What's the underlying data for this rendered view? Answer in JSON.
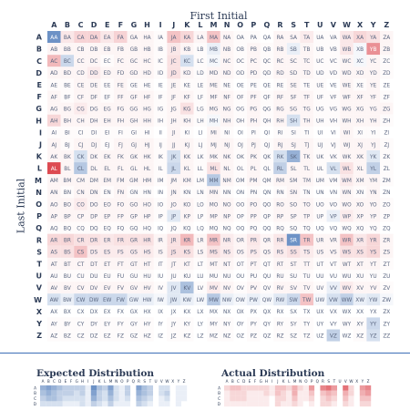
{
  "header": {
    "x_title": "First Initial",
    "y_title": "Last Initial",
    "expected_title": "Expected Distribution",
    "actual_title": "Actual Distribution"
  },
  "colors": {
    "over": "#d9363e",
    "under": "#2f63ad",
    "text": "#2b3a55",
    "divider": "#3d6fb6"
  },
  "chart_data": [
    {
      "type": "heatmap",
      "title": "",
      "xlabel": "First Initial",
      "ylabel": "Last Initial",
      "x_categories": [
        "A",
        "B",
        "C",
        "D",
        "E",
        "F",
        "G",
        "H",
        "I",
        "J",
        "K",
        "L",
        "M",
        "N",
        "O",
        "P",
        "Q",
        "R",
        "S",
        "T",
        "U",
        "V",
        "W",
        "X",
        "Y",
        "Z"
      ],
      "y_categories": [
        "A",
        "B",
        "C",
        "D",
        "E",
        "F",
        "G",
        "H",
        "I",
        "J",
        "K",
        "L",
        "M",
        "N",
        "O",
        "P",
        "Q",
        "R",
        "S",
        "T",
        "U",
        "V",
        "W",
        "X",
        "Y",
        "Z"
      ],
      "cell_labels": "first initial followed by last initial (e.g. AB)",
      "color_scale": "diverging: red = more than expected, blue = fewer than expected",
      "values": [
        [
          -0.7,
          0.12,
          0.22,
          0.22,
          0.12,
          0.22,
          0.05,
          0.05,
          0.02,
          0.3,
          0.2,
          0.05,
          0.3,
          0.05,
          0.02,
          0.02,
          0.0,
          0.05,
          0.05,
          0.1,
          0.02,
          0.02,
          0.12,
          0.2,
          0.15,
          0.05
        ],
        [
          0.05,
          0.05,
          0.05,
          0.05,
          0.05,
          0.05,
          0.05,
          0.05,
          0.02,
          0.12,
          0.05,
          0.02,
          -0.1,
          0.05,
          0.02,
          0.05,
          0.02,
          0.05,
          -0.1,
          0.05,
          0.02,
          0.02,
          0.12,
          -0.05,
          0.55,
          0.05
        ],
        [
          0.35,
          -0.25,
          0.05,
          0.05,
          0.02,
          0.05,
          0.05,
          0.05,
          0.02,
          0.15,
          -0.2,
          0.02,
          -0.05,
          0.05,
          0.02,
          0.05,
          0.02,
          0.05,
          0.05,
          0.05,
          0.02,
          0.02,
          0.05,
          -0.05,
          0.05,
          0.02
        ],
        [
          0.05,
          0.05,
          0.05,
          0.1,
          0.05,
          0.05,
          0.05,
          0.05,
          0.02,
          0.15,
          0.05,
          0.02,
          0.05,
          0.05,
          0.02,
          0.05,
          0.02,
          0.05,
          0.05,
          0.05,
          0.02,
          0.02,
          0.05,
          0.05,
          0.05,
          0.02
        ],
        [
          0.02,
          0.02,
          0.05,
          0.05,
          0.02,
          0.05,
          0.02,
          0.02,
          0.0,
          0.05,
          0.02,
          0.02,
          0.05,
          0.02,
          0.0,
          0.02,
          0.0,
          0.02,
          0.05,
          0.02,
          0.02,
          0.0,
          0.05,
          0.02,
          0.05,
          0.0
        ],
        [
          0.05,
          0.02,
          0.05,
          0.05,
          0.02,
          0.05,
          0.05,
          0.05,
          0.02,
          0.05,
          0.05,
          0.02,
          0.05,
          0.05,
          0.02,
          0.05,
          0.02,
          0.05,
          0.05,
          0.05,
          0.02,
          0.02,
          0.05,
          0.05,
          0.05,
          0.02
        ],
        [
          0.05,
          0.05,
          0.1,
          0.05,
          0.05,
          0.05,
          0.05,
          0.05,
          0.02,
          0.05,
          0.15,
          0.02,
          0.05,
          0.05,
          0.02,
          0.05,
          0.02,
          0.05,
          0.05,
          0.05,
          0.02,
          0.02,
          0.05,
          0.05,
          0.05,
          0.05
        ],
        [
          0.2,
          0.05,
          0.05,
          0.05,
          0.05,
          0.05,
          0.05,
          0.05,
          0.02,
          0.05,
          0.05,
          0.02,
          -0.05,
          0.05,
          0.02,
          0.05,
          0.02,
          0.05,
          -0.2,
          0.05,
          0.02,
          0.02,
          0.05,
          0.05,
          0.05,
          0.02
        ],
        [
          0.02,
          0.02,
          0.02,
          0.02,
          0.02,
          0.02,
          0.02,
          0.02,
          0.0,
          0.05,
          0.02,
          0.0,
          0.05,
          0.02,
          0.0,
          0.02,
          0.0,
          0.02,
          0.02,
          0.02,
          0.0,
          0.0,
          0.05,
          0.02,
          0.02,
          0.0
        ],
        [
          0.05,
          0.02,
          0.05,
          0.05,
          0.02,
          0.05,
          0.05,
          0.05,
          0.02,
          0.05,
          0.05,
          0.02,
          0.05,
          0.05,
          0.02,
          0.05,
          0.02,
          0.05,
          0.05,
          0.05,
          0.02,
          0.02,
          0.05,
          0.05,
          0.05,
          0.02
        ],
        [
          0.05,
          0.05,
          -0.2,
          0.05,
          0.05,
          0.05,
          0.05,
          0.05,
          0.02,
          -0.2,
          0.05,
          0.02,
          0.05,
          0.05,
          0.02,
          0.05,
          0.02,
          -0.2,
          -0.5,
          0.05,
          0.02,
          0.02,
          0.05,
          0.05,
          -0.15,
          0.02
        ],
        [
          0.9,
          0.05,
          -0.35,
          0.05,
          0.05,
          0.05,
          0.05,
          0.05,
          0.02,
          -0.25,
          0.05,
          0.02,
          0.15,
          0.05,
          0.02,
          0.05,
          0.02,
          -0.3,
          0.05,
          0.05,
          0.02,
          -0.2,
          0.15,
          0.05,
          -0.3,
          0.02
        ],
        [
          0.05,
          0.05,
          0.05,
          0.05,
          0.05,
          0.05,
          0.05,
          0.05,
          0.02,
          0.05,
          0.05,
          0.02,
          -0.35,
          0.05,
          0.02,
          0.05,
          0.02,
          0.05,
          0.05,
          0.05,
          0.02,
          0.02,
          0.1,
          0.05,
          0.05,
          0.02
        ],
        [
          0.05,
          0.02,
          0.05,
          0.05,
          0.02,
          0.05,
          0.02,
          0.02,
          0.0,
          0.05,
          0.02,
          0.02,
          0.05,
          0.02,
          0.0,
          0.02,
          0.0,
          0.02,
          0.05,
          0.02,
          0.0,
          0.0,
          0.05,
          0.02,
          0.05,
          0.0
        ],
        [
          0.05,
          0.05,
          0.1,
          0.05,
          0.05,
          0.05,
          0.05,
          0.05,
          0.02,
          0.05,
          0.05,
          0.02,
          0.05,
          0.05,
          0.02,
          0.05,
          0.02,
          0.05,
          0.05,
          0.05,
          0.02,
          0.02,
          0.05,
          0.05,
          0.05,
          0.02
        ],
        [
          0.05,
          0.05,
          0.05,
          0.05,
          0.05,
          0.05,
          0.05,
          0.05,
          0.02,
          -0.15,
          0.05,
          0.02,
          0.05,
          0.05,
          0.02,
          0.05,
          0.02,
          0.05,
          0.05,
          0.05,
          0.02,
          -0.1,
          0.1,
          0.05,
          0.05,
          0.02
        ],
        [
          0.02,
          0.02,
          0.02,
          0.02,
          0.02,
          0.02,
          0.02,
          0.02,
          0.0,
          0.02,
          0.02,
          0.0,
          0.02,
          0.02,
          0.0,
          0.02,
          0.0,
          0.02,
          0.02,
          0.02,
          0.0,
          0.0,
          0.02,
          0.02,
          0.02,
          0.0
        ],
        [
          0.2,
          0.2,
          0.15,
          0.15,
          0.12,
          0.15,
          0.15,
          0.15,
          0.05,
          0.15,
          0.35,
          0.05,
          0.3,
          0.1,
          0.05,
          0.12,
          0.05,
          0.12,
          -0.7,
          0.3,
          0.05,
          0.05,
          0.3,
          0.12,
          0.2,
          0.05
        ],
        [
          0.15,
          0.15,
          0.3,
          0.1,
          0.1,
          0.1,
          0.1,
          0.1,
          0.05,
          0.15,
          0.15,
          0.05,
          0.15,
          0.1,
          0.05,
          0.1,
          0.05,
          0.1,
          0.15,
          0.1,
          0.05,
          0.05,
          0.15,
          0.15,
          0.2,
          0.05
        ],
        [
          0.05,
          0.05,
          0.05,
          0.05,
          0.05,
          0.05,
          0.05,
          0.05,
          0.02,
          0.05,
          0.05,
          0.02,
          0.05,
          0.05,
          0.02,
          0.05,
          0.02,
          0.05,
          0.05,
          0.05,
          0.02,
          0.02,
          0.05,
          0.05,
          0.05,
          0.02
        ],
        [
          0.02,
          0.02,
          0.02,
          0.02,
          0.02,
          0.02,
          0.02,
          0.02,
          0.0,
          0.02,
          0.02,
          0.0,
          0.02,
          0.02,
          0.0,
          0.02,
          0.0,
          0.02,
          0.02,
          0.02,
          0.0,
          0.0,
          0.02,
          0.02,
          0.02,
          0.0
        ],
        [
          0.05,
          0.05,
          0.05,
          0.05,
          0.05,
          0.05,
          0.05,
          0.05,
          0.02,
          -0.15,
          -0.4,
          0.02,
          0.1,
          0.05,
          0.02,
          0.05,
          0.02,
          0.05,
          0.05,
          0.05,
          0.02,
          -0.1,
          0.1,
          0.05,
          0.05,
          0.02
        ],
        [
          -0.2,
          -0.1,
          -0.25,
          -0.25,
          -0.25,
          -0.25,
          -0.1,
          -0.1,
          -0.05,
          -0.15,
          -0.1,
          -0.05,
          -0.35,
          -0.1,
          -0.05,
          -0.1,
          -0.05,
          -0.15,
          -0.25,
          0.3,
          -0.05,
          -0.2,
          -0.3,
          -0.1,
          -0.15,
          -0.05
        ],
        [
          0.0,
          0.0,
          0.0,
          0.0,
          0.0,
          0.0,
          0.0,
          0.0,
          0.0,
          0.0,
          0.0,
          0.0,
          0.0,
          0.0,
          0.0,
          0.0,
          0.0,
          0.0,
          0.0,
          0.0,
          0.0,
          0.0,
          0.0,
          0.0,
          0.0,
          0.0
        ],
        [
          0.02,
          0.02,
          0.02,
          0.02,
          0.02,
          0.02,
          0.02,
          0.02,
          0.0,
          0.02,
          0.02,
          0.0,
          0.02,
          0.02,
          0.0,
          0.02,
          0.0,
          0.02,
          0.02,
          0.02,
          0.0,
          0.0,
          0.02,
          0.02,
          -0.25,
          0.0
        ],
        [
          0.02,
          0.02,
          0.02,
          0.02,
          0.02,
          0.02,
          0.02,
          0.02,
          0.0,
          0.02,
          0.02,
          0.0,
          0.02,
          0.02,
          0.0,
          0.02,
          0.0,
          0.02,
          0.02,
          0.02,
          0.0,
          -0.3,
          0.0,
          0.02,
          -0.2,
          0.0
        ]
      ]
    },
    {
      "type": "heatmap",
      "title": "Expected Distribution",
      "x_categories": [
        "A",
        "B",
        "C",
        "D",
        "E",
        "F",
        "G",
        "H",
        "I",
        "J",
        "K",
        "L",
        "M",
        "N",
        "O",
        "P",
        "Q",
        "R",
        "S",
        "T",
        "U",
        "V",
        "W",
        "X",
        "Y",
        "Z"
      ],
      "y_categories": [
        "A",
        "B",
        "C",
        "D"
      ],
      "rows_shown": 4,
      "values": [
        [
          0.5,
          0.6,
          0.5,
          0.4,
          0.3,
          0.3,
          0.3,
          0.3,
          0.1,
          0.7,
          0.4,
          0.3,
          0.6,
          0.2,
          0.1,
          0.3,
          0.0,
          0.6,
          0.4,
          0.3,
          0.0,
          0.2,
          0.2,
          0.0,
          0.1,
          0.1
        ],
        [
          0.4,
          0.5,
          0.4,
          0.3,
          0.3,
          0.3,
          0.2,
          0.3,
          0.1,
          0.6,
          0.3,
          0.2,
          0.5,
          0.2,
          0.1,
          0.3,
          0.0,
          0.5,
          0.4,
          0.3,
          0.0,
          0.2,
          0.3,
          0.0,
          0.1,
          0.1
        ],
        [
          0.3,
          0.4,
          0.4,
          0.3,
          0.2,
          0.2,
          0.2,
          0.2,
          0.1,
          0.5,
          0.3,
          0.2,
          0.4,
          0.2,
          0.1,
          0.2,
          0.0,
          0.4,
          0.3,
          0.2,
          0.0,
          0.1,
          0.2,
          0.0,
          0.1,
          0.1
        ],
        [
          0.2,
          0.2,
          0.2,
          0.2,
          0.1,
          0.1,
          0.1,
          0.2,
          0.1,
          0.3,
          0.2,
          0.1,
          0.3,
          0.1,
          0.1,
          0.1,
          0.0,
          0.3,
          0.2,
          0.1,
          0.0,
          0.1,
          0.1,
          0.0,
          0.1,
          0.0
        ]
      ]
    },
    {
      "type": "heatmap",
      "title": "Actual Distribution",
      "x_categories": [
        "A",
        "B",
        "C",
        "D",
        "E",
        "F",
        "G",
        "H",
        "I",
        "J",
        "K",
        "L",
        "M",
        "N",
        "O",
        "P",
        "Q",
        "R",
        "S",
        "T",
        "U",
        "V",
        "W",
        "X",
        "Y",
        "Z"
      ],
      "y_categories": [
        "A",
        "B",
        "C",
        "D"
      ],
      "rows_shown": 4,
      "values": [
        [
          0.2,
          0.3,
          0.3,
          0.2,
          0.2,
          0.2,
          0.2,
          0.2,
          0.1,
          0.3,
          0.3,
          0.2,
          0.4,
          0.2,
          0.1,
          0.5,
          0.0,
          0.6,
          0.7,
          0.5,
          0.0,
          0.7,
          0.2,
          0.0,
          0.5,
          0.6
        ],
        [
          0.1,
          0.2,
          0.2,
          0.2,
          0.1,
          0.1,
          0.1,
          0.2,
          0.1,
          0.3,
          0.2,
          0.1,
          0.4,
          0.1,
          0.1,
          0.3,
          0.0,
          0.3,
          0.4,
          0.3,
          0.0,
          0.4,
          0.2,
          0.0,
          0.4,
          0.5
        ],
        [
          0.1,
          0.2,
          0.2,
          0.2,
          0.1,
          0.1,
          0.1,
          0.1,
          0.0,
          0.2,
          0.2,
          0.1,
          0.3,
          0.1,
          0.1,
          0.2,
          0.0,
          0.2,
          0.3,
          0.2,
          0.0,
          0.3,
          0.1,
          0.0,
          0.3,
          0.3
        ],
        [
          0.1,
          0.1,
          0.1,
          0.1,
          0.1,
          0.1,
          0.1,
          0.1,
          0.0,
          0.2,
          0.1,
          0.1,
          0.2,
          0.1,
          0.0,
          0.1,
          0.0,
          0.2,
          0.2,
          0.1,
          0.0,
          0.2,
          0.1,
          0.0,
          0.2,
          0.2
        ]
      ]
    }
  ]
}
